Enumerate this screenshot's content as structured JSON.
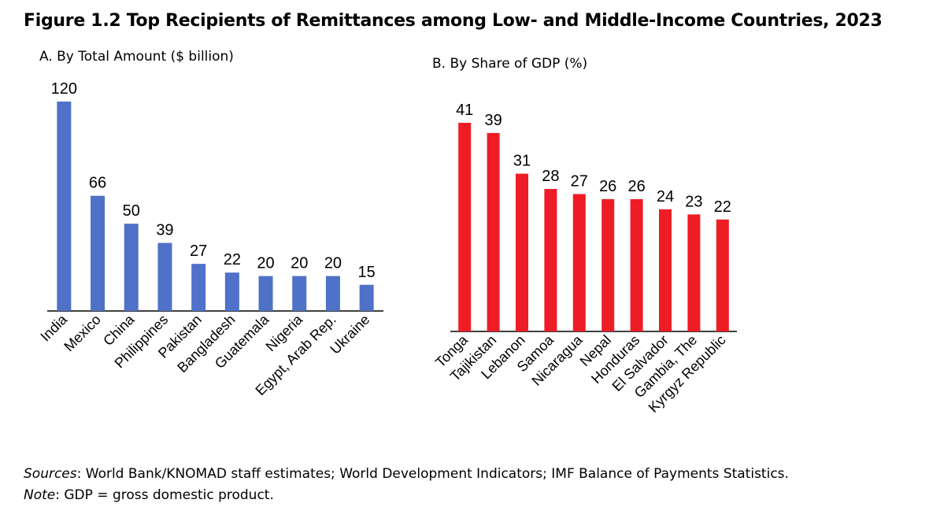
{
  "figure": {
    "title": "Figure 1.2 Top Recipients of Remittances among Low- and Middle-Income Countries, 2023",
    "sources_label": "Sources",
    "sources_text": ": World Bank/KNOMAD staff estimates; World Development Indicators; IMF Balance of Payments Statistics.",
    "note_label": "Note",
    "note_text": ": GDP = gross domestic product."
  },
  "chart_data": [
    {
      "type": "bar",
      "title": "A. By Total Amount ($ billion)",
      "categories": [
        "India",
        "Mexico",
        "China",
        "Philippines",
        "Pakistan",
        "Bangladesh",
        "Guatemala",
        "Nigeria",
        "Egypt, Arab Rep.",
        "Ukraine"
      ],
      "values": [
        120,
        66,
        50,
        39,
        27,
        22,
        20,
        20,
        20,
        15
      ],
      "color": "#4f71c7",
      "data_labels": true,
      "grid": false,
      "ylim": [
        0,
        120
      ]
    },
    {
      "type": "bar",
      "title": "B. By Share of GDP (%)",
      "categories": [
        "Tonga",
        "Tajikistan",
        "Lebanon",
        "Samoa",
        "Nicaragua",
        "Nepal",
        "Honduras",
        "El Salvador",
        "Gambia, The",
        "Kyrgyz Republic"
      ],
      "values": [
        41,
        39,
        31,
        28,
        27,
        26,
        26,
        24,
        23,
        22
      ],
      "color": "#ee1c25",
      "data_labels": true,
      "grid": false,
      "ylim": [
        0,
        41
      ]
    }
  ]
}
